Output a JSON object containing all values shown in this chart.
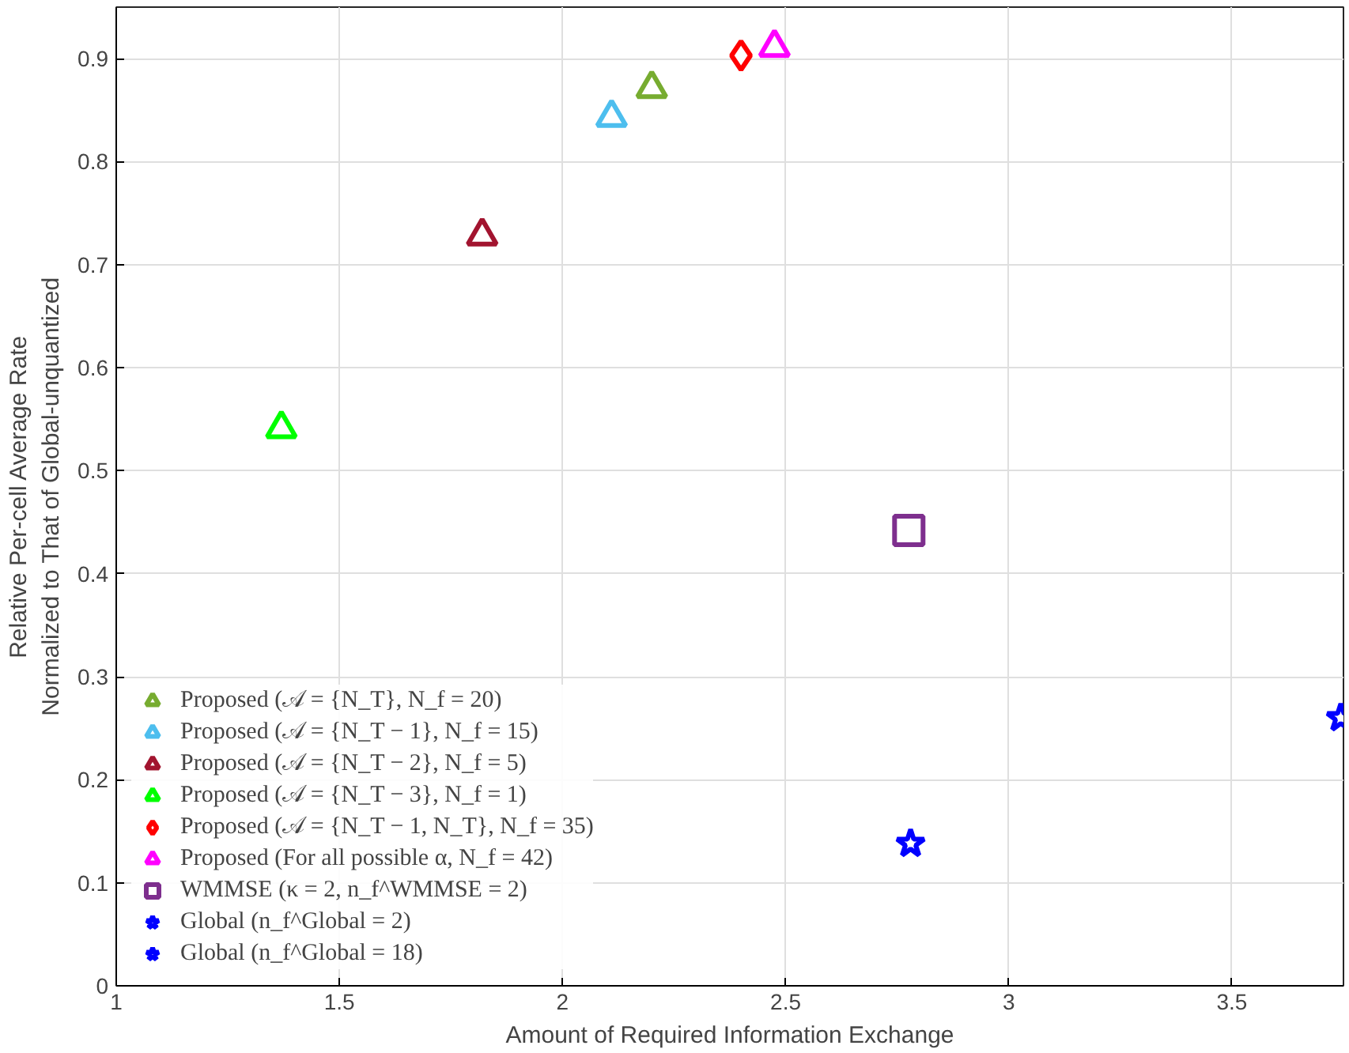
{
  "chart_data": {
    "type": "scatter",
    "xlabel": "Amount of Required Information Exchange",
    "ylabel": "Relative Per-cell Average Rate\nNormalized to That of Global-unquantized",
    "xlim": [
      1,
      3.75
    ],
    "ylim": [
      0,
      0.95
    ],
    "xticks": [
      1,
      1.5,
      2,
      2.5,
      3,
      3.5
    ],
    "yticks": [
      0,
      0.1,
      0.2,
      0.3,
      0.4,
      0.5,
      0.6,
      0.7,
      0.8,
      0.9
    ],
    "grid": true,
    "legend": "bottom left",
    "series": [
      {
        "name": "Proposed (𝒜 = {N_T}, N_f = 20)",
        "color": "#77ac30",
        "marker": "triangle",
        "x": [
          2.2
        ],
        "values": [
          0.871
        ]
      },
      {
        "name": "Proposed (𝒜 = {N_T − 1}, N_f = 15)",
        "color": "#4dbeee",
        "marker": "triangle",
        "x": [
          2.11
        ],
        "values": [
          0.843
        ]
      },
      {
        "name": "Proposed (𝒜 = {N_T − 2}, N_f = 5)",
        "color": "#a2142f",
        "marker": "triangle",
        "x": [
          1.82
        ],
        "values": [
          0.728
        ]
      },
      {
        "name": "Proposed (𝒜 = {N_T − 3}, N_f = 1)",
        "color": "#00ff00",
        "marker": "triangle",
        "x": [
          1.37
        ],
        "values": [
          0.541
        ]
      },
      {
        "name": "Proposed (𝒜 = {N_T − 1, N_T}, N_f = 35)",
        "color": "#ff0000",
        "marker": "diamond",
        "x": [
          2.4
        ],
        "values": [
          0.903
        ]
      },
      {
        "name": "Proposed (For all possible α, N_f = 42)",
        "color": "#ff00ff",
        "marker": "triangle",
        "x": [
          2.475
        ],
        "values": [
          0.911
        ]
      },
      {
        "name": "WMMSE (κ = 2, n_f^WMMSE = 2)",
        "color": "#7e2f8e",
        "marker": "square",
        "x": [
          2.776
        ],
        "values": [
          0.442
        ]
      },
      {
        "name": "Global (n_f^Global = 2)",
        "color": "#0000ff",
        "marker": "star",
        "x": [
          2.78
        ],
        "values": [
          0.138
        ]
      },
      {
        "name": "Global (n_f^Global = 18)",
        "color": "#0000ff",
        "marker": "star",
        "x": [
          3.744
        ],
        "values": [
          0.26
        ]
      }
    ]
  }
}
